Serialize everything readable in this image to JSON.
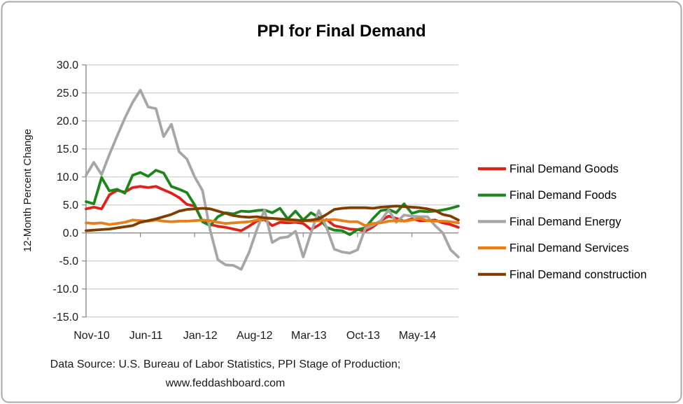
{
  "title": "PPI for Final Demand",
  "y_axis": {
    "label": "12-Month Percent Change",
    "tick_labels": [
      "30.0",
      "25.0",
      "20.0",
      "15.0",
      "10.0",
      "5.0",
      "0.0",
      "-5.0",
      "-10.0",
      "-15.0"
    ],
    "min": -15,
    "max": 30,
    "step": 5
  },
  "x_axis": {
    "tick_labels": [
      "Nov-10",
      "Jun-11",
      "Jan-12",
      "Aug-12",
      "Mar-13",
      "Oct-13",
      "May-14"
    ],
    "tick_indices": [
      0,
      7,
      14,
      21,
      28,
      35,
      42
    ]
  },
  "legend": {
    "items": [
      {
        "label": "Final Demand Goods",
        "color": "#e02019"
      },
      {
        "label": "Final Demand Foods",
        "color": "#1b871b"
      },
      {
        "label": "Final Demand Energy",
        "color": "#a6a6a6"
      },
      {
        "label": "Final Demand Services",
        "color": "#e87e16"
      },
      {
        "label": "Final Demand construction",
        "color": "#7f3e00"
      }
    ]
  },
  "source": {
    "line1": "Data Source: U.S. Bureau of Labor Statistics, PPI Stage of Production;",
    "line2": "www.feddashboard.com"
  },
  "colors": {
    "gridline": "#c6c6c6",
    "axis": "#8c8c8c",
    "text": "#1a1a1a",
    "title": "#000000",
    "border": "#a9a9a9"
  },
  "chart_data": {
    "type": "line",
    "title": "PPI for Final Demand",
    "xlabel": "",
    "ylabel": "12-Month Percent Change",
    "ylim": [
      -15,
      30
    ],
    "grid": true,
    "legend_position": "right",
    "categories": [
      "Nov-10",
      "Dec-10",
      "Jan-11",
      "Feb-11",
      "Mar-11",
      "Apr-11",
      "May-11",
      "Jun-11",
      "Jul-11",
      "Aug-11",
      "Sep-11",
      "Oct-11",
      "Nov-11",
      "Dec-11",
      "Jan-12",
      "Feb-12",
      "Mar-12",
      "Apr-12",
      "May-12",
      "Jun-12",
      "Jul-12",
      "Aug-12",
      "Sep-12",
      "Oct-12",
      "Nov-12",
      "Dec-12",
      "Jan-13",
      "Feb-13",
      "Mar-13",
      "Apr-13",
      "May-13",
      "Jun-13",
      "Jul-13",
      "Aug-13",
      "Sep-13",
      "Oct-13",
      "Nov-13",
      "Dec-13",
      "Jan-14",
      "Feb-14",
      "Mar-14",
      "Apr-14",
      "May-14",
      "Jun-14",
      "Jul-14",
      "Aug-14",
      "Sep-14",
      "Oct-14",
      "Nov-14"
    ],
    "series": [
      {
        "name": "Final Demand Goods",
        "color": "#e02019",
        "values": [
          4.3,
          4.6,
          4.3,
          6.8,
          7.6,
          7.3,
          8.1,
          8.3,
          8.1,
          8.3,
          7.7,
          7.1,
          6.3,
          5.1,
          4.8,
          2.1,
          1.5,
          1.2,
          1.0,
          0.7,
          0.4,
          1.2,
          2.1,
          2.4,
          1.3,
          1.9,
          1.8,
          1.9,
          1.7,
          0.6,
          1.4,
          2.4,
          1.3,
          1.0,
          0.7,
          0.6,
          0.3,
          1.1,
          2.2,
          3.0,
          2.6,
          2.1,
          2.5,
          2.2,
          2.2,
          2.3,
          1.8,
          1.5,
          1.0
        ]
      },
      {
        "name": "Final Demand Foods",
        "color": "#1b871b",
        "values": [
          5.6,
          5.2,
          9.9,
          7.5,
          7.8,
          7.1,
          10.3,
          10.8,
          10.1,
          11.2,
          10.7,
          8.3,
          7.8,
          7.2,
          5.0,
          2.0,
          1.3,
          2.9,
          3.6,
          3.4,
          3.9,
          3.8,
          4.0,
          4.1,
          3.6,
          4.4,
          2.5,
          3.9,
          2.3,
          3.6,
          2.8,
          1.0,
          0.5,
          0.4,
          -0.3,
          0.6,
          0.9,
          2.6,
          4.0,
          4.2,
          3.6,
          5.2,
          3.5,
          3.9,
          3.8,
          3.9,
          4.1,
          4.4,
          4.8
        ]
      },
      {
        "name": "Final Demand Energy",
        "color": "#a6a6a6",
        "values": [
          10.3,
          12.6,
          10.4,
          14.0,
          17.3,
          20.5,
          23.3,
          25.5,
          22.5,
          22.2,
          17.2,
          19.4,
          14.5,
          13.2,
          10.0,
          7.6,
          0.5,
          -4.8,
          -5.7,
          -5.8,
          -6.5,
          -3.5,
          0.5,
          4.1,
          -1.7,
          -0.9,
          -0.7,
          0.3,
          -4.3,
          0.0,
          4.0,
          1.0,
          -2.9,
          -3.4,
          -3.6,
          -3.0,
          0.8,
          1.4,
          2.2,
          4.1,
          1.9,
          3.2,
          3.0,
          2.9,
          2.9,
          1.3,
          0.0,
          -3.0,
          -4.3
        ]
      },
      {
        "name": "Final Demand Services",
        "color": "#e87e16",
        "values": [
          1.8,
          1.7,
          1.8,
          1.5,
          1.7,
          1.9,
          2.3,
          2.2,
          2.1,
          2.3,
          2.1,
          2.0,
          2.1,
          2.1,
          2.2,
          2.3,
          2.2,
          1.9,
          1.7,
          1.8,
          1.9,
          2.0,
          2.3,
          2.5,
          2.6,
          2.4,
          2.2,
          2.1,
          2.2,
          2.1,
          2.2,
          2.3,
          2.4,
          2.2,
          2.0,
          2.0,
          1.3,
          1.7,
          1.8,
          2.1,
          2.2,
          2.1,
          2.3,
          2.6,
          2.2,
          2.1,
          2.1,
          2.0,
          1.8
        ]
      },
      {
        "name": "Final Demand construction",
        "color": "#7f3e00",
        "values": [
          0.4,
          0.5,
          0.6,
          0.7,
          0.9,
          1.1,
          1.3,
          1.9,
          2.2,
          2.5,
          2.9,
          3.3,
          3.9,
          4.2,
          4.3,
          4.4,
          4.3,
          3.9,
          3.5,
          3.1,
          2.9,
          2.8,
          2.9,
          2.7,
          2.6,
          2.5,
          2.4,
          2.3,
          2.2,
          2.3,
          2.5,
          3.3,
          4.2,
          4.4,
          4.5,
          4.5,
          4.5,
          4.4,
          4.6,
          4.7,
          4.8,
          4.7,
          4.6,
          4.5,
          4.3,
          4.0,
          3.3,
          3.0,
          2.3
        ]
      }
    ]
  }
}
